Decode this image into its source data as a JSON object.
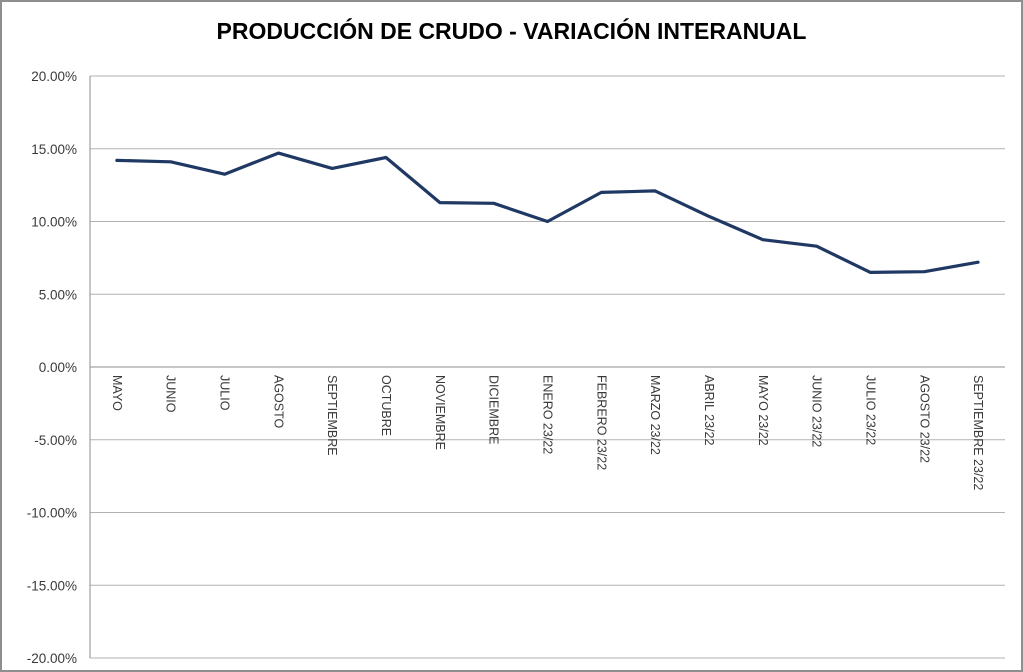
{
  "title": "PRODUCCIÓN DE CRUDO - VARIACIÓN INTERANUAL",
  "chart_data": {
    "type": "line",
    "title": "PRODUCCIÓN DE CRUDO - VARIACIÓN INTERANUAL",
    "categories": [
      "MAYO",
      "JUNIO",
      "JULIO",
      "AGOSTO",
      "SEPTIEMBRE",
      "OCTUBRE",
      "NOVIEMBRE",
      "DICIEMBRE",
      "ENERO 23/22",
      "FEBRERO 23/22",
      "MARZO 23/22",
      "ABRIL 23/22",
      "MAYO 23/22",
      "JUNIO 23/22",
      "JULIO 23/22",
      "AGOSTO 23/22",
      "SEPTIEMBRE 23/22"
    ],
    "values": [
      14.2,
      14.1,
      13.25,
      14.7,
      13.65,
      14.4,
      11.3,
      11.25,
      10.0,
      12.0,
      12.1,
      10.35,
      8.75,
      8.3,
      6.5,
      6.55,
      7.2
    ],
    "xlabel": "",
    "ylabel": "",
    "ylim": [
      -20,
      20
    ],
    "y_tick_step": 5,
    "y_tick_labels": [
      "20.00%",
      "15.00%",
      "10.00%",
      "5.00%",
      "0.00%",
      "-5.00%",
      "-10.00%",
      "-15.00%",
      "-20.00%"
    ],
    "grid": true,
    "legend": false,
    "line_color": "#1F3864",
    "gridline_color": "#b2b2b2",
    "axis_color": "#8e8e8e",
    "tick_label_color": "#3a3a3a"
  }
}
